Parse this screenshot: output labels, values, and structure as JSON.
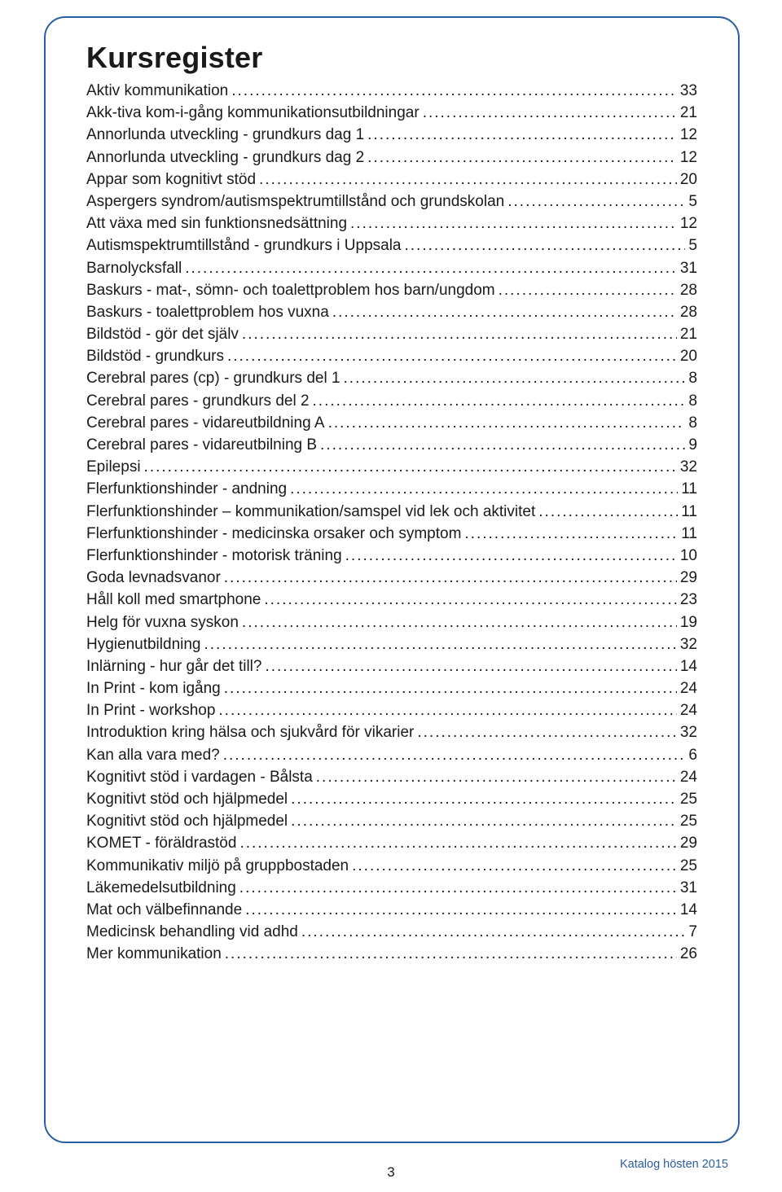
{
  "page": {
    "title": "Kursregister",
    "footer": "Katalog hösten 2015",
    "page_number": "3",
    "frame_border_color": "#2a5ea3",
    "text_color": "#1a1a1a",
    "background_color": "#ffffff"
  },
  "toc": {
    "entries": [
      {
        "label": "Aktiv kommunikation",
        "page": "33"
      },
      {
        "label": "Akk-tiva kom-i-gång kommunikationsutbildningar",
        "page": "21"
      },
      {
        "label": "Annorlunda utveckling - grundkurs dag 1",
        "page": "12"
      },
      {
        "label": "Annorlunda utveckling - grundkurs dag 2",
        "page": "12"
      },
      {
        "label": "Appar som kognitivt stöd",
        "page": "20"
      },
      {
        "label": "Aspergers syndrom/autismspektrumtillstånd och grundskolan",
        "page": "5"
      },
      {
        "label": "Att växa med sin funktionsnedsättning",
        "page": "12"
      },
      {
        "label": "Autismspektrumtillstånd - grundkurs i Uppsala",
        "page": "5"
      },
      {
        "label": "Barnolycksfall",
        "page": "31"
      },
      {
        "label": "Baskurs - mat-, sömn- och toalettproblem hos barn/ungdom",
        "page": "28"
      },
      {
        "label": "Baskurs - toalettproblem hos vuxna",
        "page": "28"
      },
      {
        "label": "Bildstöd - gör det själv",
        "page": "21"
      },
      {
        "label": "Bildstöd - grundkurs",
        "page": "20"
      },
      {
        "label": "Cerebral pares (cp) - grundkurs del 1",
        "page": "8"
      },
      {
        "label": "Cerebral pares - grundkurs del 2",
        "page": "8"
      },
      {
        "label": "Cerebral pares - vidareutbildning A",
        "page": "8"
      },
      {
        "label": "Cerebral pares - vidareutbilning B",
        "page": "9"
      },
      {
        "label": "Epilepsi",
        "page": "32"
      },
      {
        "label": "Flerfunktionshinder - andning",
        "page": "11"
      },
      {
        "label": "Flerfunktionshinder – kommunikation/samspel vid lek och aktivitet",
        "page": "11"
      },
      {
        "label": "Flerfunktionshinder - medicinska orsaker och symptom",
        "page": "11"
      },
      {
        "label": "Flerfunktionshinder - motorisk träning",
        "page": "10"
      },
      {
        "label": "Goda levnadsvanor",
        "page": "29"
      },
      {
        "label": "Håll koll med smartphone",
        "page": "23"
      },
      {
        "label": "Helg för vuxna syskon",
        "page": "19"
      },
      {
        "label": "Hygienutbildning",
        "page": "32"
      },
      {
        "label": "Inlärning - hur går det till?",
        "page": "14"
      },
      {
        "label": "In Print - kom igång",
        "page": "24"
      },
      {
        "label": "In Print - workshop",
        "page": "24"
      },
      {
        "label": "Introduktion kring hälsa och sjukvård för vikarier",
        "page": "32"
      },
      {
        "label": "Kan alla vara med?",
        "page": "6"
      },
      {
        "label": "Kognitivt stöd i vardagen - Bålsta",
        "page": "24"
      },
      {
        "label": "Kognitivt stöd och hjälpmedel",
        "page": "25"
      },
      {
        "label": "Kognitivt stöd och hjälpmedel",
        "page": "25"
      },
      {
        "label": "KOMET - föräldrastöd",
        "page": "29"
      },
      {
        "label": "Kommunikativ miljö på gruppbostaden",
        "page": "25"
      },
      {
        "label": "Läkemedelsutbildning",
        "page": "31"
      },
      {
        "label": "Mat och välbefinnande",
        "page": "14"
      },
      {
        "label": "Medicinsk behandling vid adhd",
        "page": "7"
      },
      {
        "label": "Mer kommunikation",
        "page": "26"
      }
    ]
  }
}
